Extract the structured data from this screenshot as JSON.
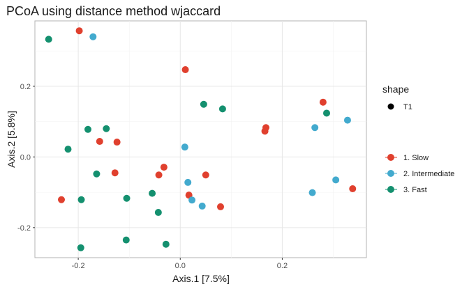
{
  "chart_data": {
    "type": "scatter",
    "title": "PCoA using distance method wjaccard",
    "xlabel": "Axis.1   [7.5%]",
    "ylabel": "Axis.2   [5.8%]",
    "xlim": [
      -0.285,
      0.365
    ],
    "ylim": [
      -0.285,
      0.385
    ],
    "x_ticks": [
      -0.2,
      0.0,
      0.2
    ],
    "x_tick_labels": [
      "-0.2",
      "0.0",
      "0.2"
    ],
    "y_ticks": [
      -0.2,
      0.0,
      0.2
    ],
    "y_tick_labels": [
      "-0.2",
      "0.0",
      "0.2"
    ],
    "grid": true,
    "legend_position": "right",
    "legends": [
      {
        "title": "shape",
        "entries": [
          {
            "label": "T1",
            "color": "#000000"
          }
        ]
      },
      {
        "title": "",
        "entries": [
          {
            "label": "1. Slow",
            "color": "#E0402E"
          },
          {
            "label": "2. Intermediate",
            "color": "#43AACE"
          },
          {
            "label": "3. Fast",
            "color": "#14906F"
          }
        ]
      }
    ],
    "series": [
      {
        "name": "1. Slow",
        "color": "#E0402E",
        "points": [
          [
            -0.198,
            0.357
          ],
          [
            0.01,
            0.247
          ],
          [
            0.28,
            0.155
          ],
          [
            0.168,
            0.083
          ],
          [
            0.166,
            0.073
          ],
          [
            -0.158,
            0.044
          ],
          [
            -0.124,
            0.042
          ],
          [
            -0.032,
            -0.029
          ],
          [
            -0.128,
            -0.045
          ],
          [
            -0.042,
            -0.051
          ],
          [
            0.05,
            -0.051
          ],
          [
            0.017,
            -0.108
          ],
          [
            -0.233,
            -0.121
          ],
          [
            0.079,
            -0.141
          ],
          [
            0.338,
            -0.09
          ]
        ]
      },
      {
        "name": "2. Intermediate",
        "color": "#43AACE",
        "points": [
          [
            -0.171,
            0.34
          ],
          [
            0.264,
            0.083
          ],
          [
            0.328,
            0.104
          ],
          [
            0.009,
            0.028
          ],
          [
            0.015,
            -0.072
          ],
          [
            0.305,
            -0.065
          ],
          [
            0.259,
            -0.101
          ],
          [
            0.023,
            -0.122
          ],
          [
            0.043,
            -0.139
          ]
        ]
      },
      {
        "name": "3. Fast",
        "color": "#14906F",
        "points": [
          [
            -0.258,
            0.333
          ],
          [
            0.046,
            0.149
          ],
          [
            0.083,
            0.136
          ],
          [
            0.287,
            0.124
          ],
          [
            -0.181,
            0.078
          ],
          [
            -0.145,
            0.08
          ],
          [
            -0.22,
            0.022
          ],
          [
            -0.164,
            -0.048
          ],
          [
            -0.055,
            -0.103
          ],
          [
            -0.105,
            -0.117
          ],
          [
            -0.194,
            -0.121
          ],
          [
            -0.043,
            -0.157
          ],
          [
            -0.106,
            -0.235
          ],
          [
            -0.195,
            -0.257
          ],
          [
            -0.028,
            -0.247
          ]
        ]
      }
    ]
  }
}
